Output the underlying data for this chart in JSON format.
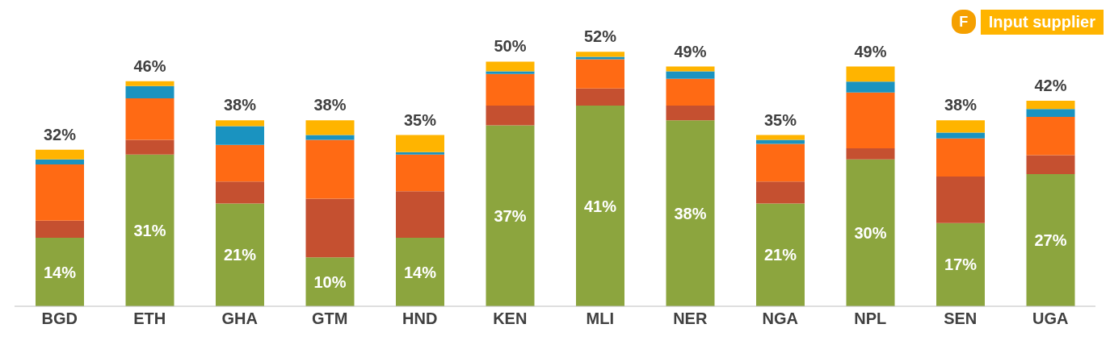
{
  "chart_data": {
    "type": "bar",
    "stacked": true,
    "categories": [
      "BGD",
      "ETH",
      "GHA",
      "GTM",
      "HND",
      "KEN",
      "MLI",
      "NER",
      "NGA",
      "NPL",
      "SEN",
      "UGA"
    ],
    "series": [
      {
        "color": "#8ca53e",
        "values": [
          14,
          31,
          21,
          10,
          14,
          37,
          41,
          38,
          21,
          30,
          17,
          27
        ],
        "value_labels": [
          "14%",
          "31%",
          "21%",
          "10%",
          "14%",
          "37%",
          "41%",
          "38%",
          "21%",
          "30%",
          "17%",
          "27%"
        ]
      },
      {
        "color": "#c55030",
        "values": [
          3.5,
          3,
          4.5,
          12,
          9.5,
          4,
          3.5,
          3,
          4.5,
          2.3,
          9.5,
          3.9
        ]
      },
      {
        "color": "#ff6a14",
        "values": [
          11.5,
          8.5,
          7.5,
          12,
          7.5,
          6.5,
          6,
          5.5,
          7.7,
          11.4,
          7.8,
          7.8
        ]
      },
      {
        "color": "#1a93c0",
        "values": [
          1,
          2.5,
          3.8,
          1,
          0.5,
          0.5,
          0.5,
          1.5,
          0.8,
          2.2,
          1.2,
          1.6
        ]
      },
      {
        "color": "#ffb400",
        "values": [
          2,
          1,
          1.2,
          3,
          3.5,
          2,
          1,
          1,
          1,
          3.1,
          2.5,
          1.7
        ]
      }
    ],
    "totals": [
      "32%",
      "46%",
      "38%",
      "38%",
      "35%",
      "50%",
      "52%",
      "49%",
      "35%",
      "49%",
      "38%",
      "42%"
    ],
    "annotations": [
      "F",
      "Input supplier"
    ]
  }
}
